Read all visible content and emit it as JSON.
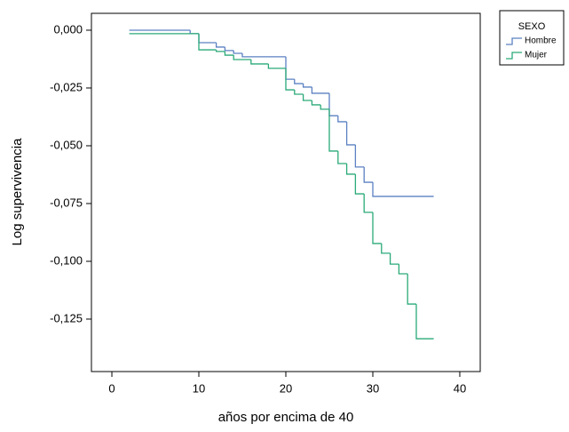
{
  "chart_data": {
    "type": "step",
    "xlabel": "años por encima de 40",
    "ylabel": "Log supervivencia",
    "legend_title": "SEXO",
    "legend": "upper right outside",
    "xlim": [
      -2.35,
      42.35
    ],
    "xticks": [
      0,
      10,
      20,
      30,
      40
    ],
    "ylim": [
      -0.1477,
      0.0073
    ],
    "yticks": [
      {
        "value": 0,
        "label": "0,000"
      },
      {
        "value": -0.025,
        "label": "-0,025"
      },
      {
        "value": -0.05,
        "label": "-0,050"
      },
      {
        "value": -0.075,
        "label": "-0,075"
      },
      {
        "value": -0.1,
        "label": "-0,100"
      },
      {
        "value": -0.125,
        "label": "-0,125"
      }
    ],
    "series": [
      {
        "name": "Hombre",
        "color": "#5b80c2",
        "x": [
          2,
          9,
          10,
          12,
          13,
          14,
          15,
          20,
          21,
          22,
          23,
          25,
          26,
          27,
          28,
          29,
          30,
          37
        ],
        "values": [
          0,
          -0.0015,
          -0.0054,
          -0.0073,
          -0.0088,
          -0.01,
          -0.0115,
          -0.0212,
          -0.0231,
          -0.0246,
          -0.0273,
          -0.037,
          -0.0396,
          -0.0496,
          -0.0592,
          -0.0658,
          -0.0719,
          -0.0719
        ]
      },
      {
        "name": "Mujer",
        "color": "#2aaa78",
        "x": [
          2,
          10,
          12,
          13,
          14,
          16,
          18,
          20,
          21,
          22,
          23,
          24,
          25,
          26,
          27,
          28,
          29,
          30,
          31,
          32,
          33,
          34,
          35,
          37
        ],
        "values": [
          -0.0015,
          -0.0085,
          -0.0092,
          -0.0108,
          -0.0127,
          -0.0146,
          -0.0165,
          -0.0258,
          -0.0277,
          -0.0304,
          -0.0323,
          -0.0342,
          -0.0523,
          -0.0577,
          -0.0623,
          -0.0708,
          -0.0788,
          -0.0923,
          -0.0965,
          -0.1012,
          -0.1054,
          -0.1185,
          -0.1335,
          -0.1335
        ]
      }
    ]
  }
}
